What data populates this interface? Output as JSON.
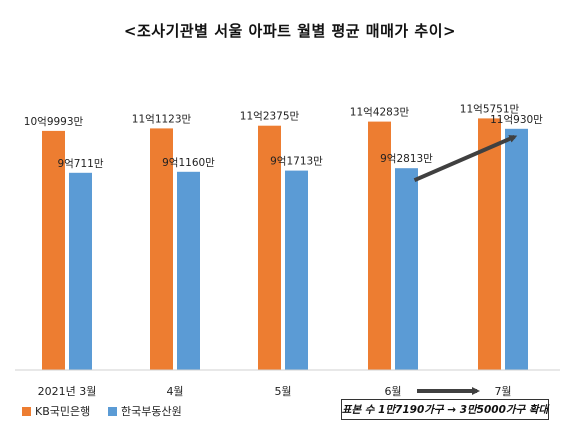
{
  "chart_data": {
    "type": "bar",
    "title": "<조사기관별 서울 아파트 월별 평균 매매가 추이>",
    "categories": [
      "2021년 3월",
      "4월",
      "5월",
      "6월",
      "7월"
    ],
    "series": [
      {
        "name": "KB국민은행",
        "color": "#ED7D31",
        "values": [
          109993,
          111123,
          112375,
          114283,
          115751
        ],
        "labels": [
          "10억9993만",
          "11억1123만",
          "11억2375만",
          "11억4283만",
          "11억5751만"
        ]
      },
      {
        "name": "한국부동산원",
        "color": "#5B9BD5",
        "values": [
          90711,
          91160,
          91713,
          92813,
          110930
        ],
        "labels": [
          "9억711만",
          "9억1160만",
          "9억1713만",
          "9억2813만",
          "11억930만"
        ]
      }
    ],
    "unit": "만원",
    "annotation": {
      "trend_arrow": {
        "from_category": "6월",
        "to_category": "7월",
        "series": "한국부동산원",
        "color": "#404040"
      },
      "axis_arrow": {
        "from_category": "6월",
        "to_category": "7월",
        "color": "#404040"
      },
      "note": "표본 수 1만7190가구 → 3만5000가구 확대"
    },
    "grid": false,
    "legend_position": "bottom-left"
  }
}
